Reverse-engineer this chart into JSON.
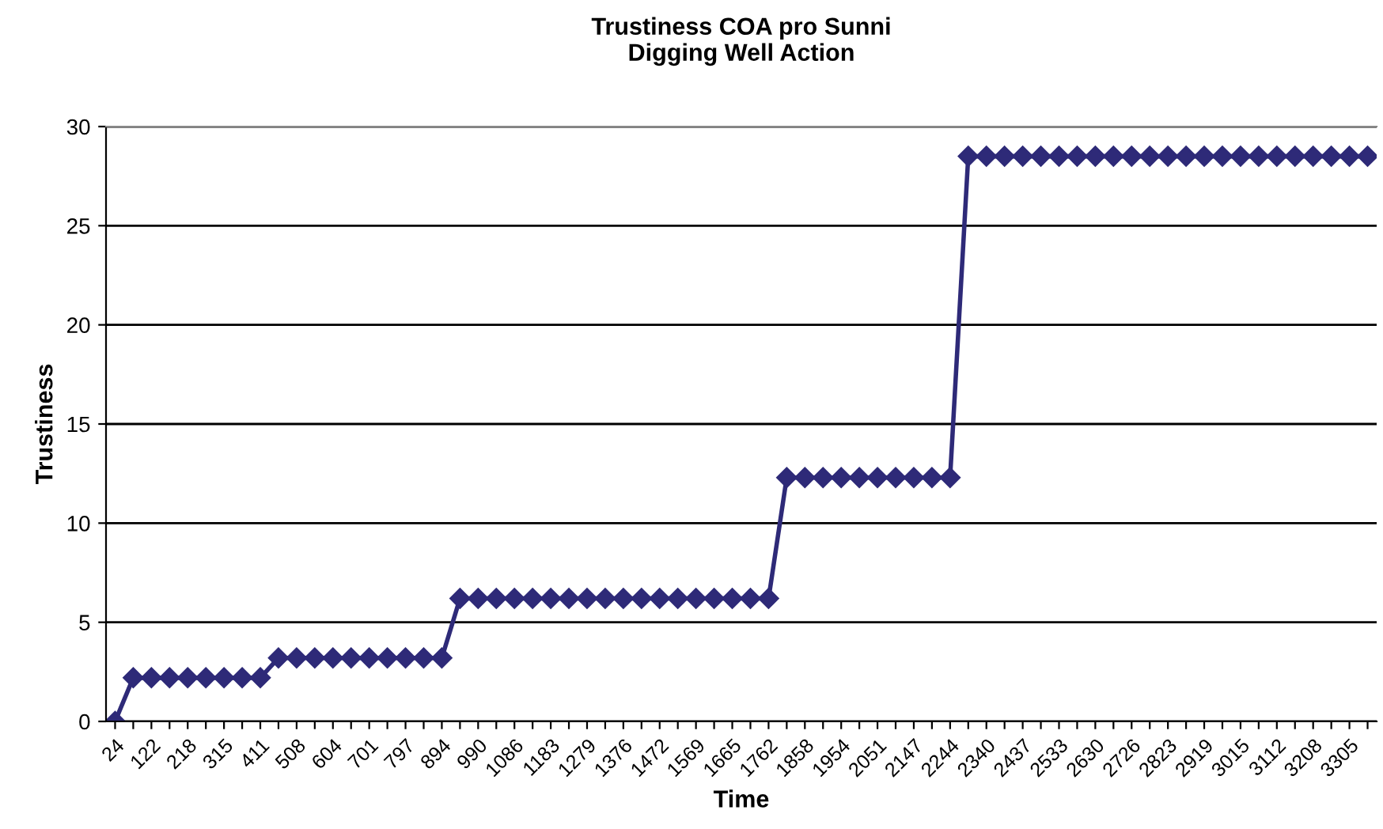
{
  "chart_data": {
    "type": "line",
    "title": "Trustiness COA pro Sunni\nDigging Well Action",
    "xlabel": "Time",
    "ylabel": "Trustiness",
    "categories": [
      "24",
      null,
      "122",
      null,
      "218",
      null,
      "315",
      null,
      "411",
      null,
      "508",
      null,
      "604",
      null,
      "701",
      null,
      "797",
      null,
      "894",
      null,
      "990",
      null,
      "1086",
      null,
      "1183",
      null,
      "1279",
      null,
      "1376",
      null,
      "1472",
      null,
      "1569",
      null,
      "1665",
      null,
      "1762",
      null,
      "1858",
      null,
      "1954",
      null,
      "2051",
      null,
      "2147",
      null,
      "2244",
      null,
      "2340",
      null,
      "2437",
      null,
      "2533",
      null,
      "2630",
      null,
      "2726",
      null,
      "2823",
      null,
      "2919",
      null,
      "3015",
      null,
      "3112",
      null,
      "3208",
      null,
      "3305",
      null
    ],
    "series": [
      {
        "color": "#2e2a78",
        "values": [
          0,
          2.2,
          2.2,
          2.2,
          2.2,
          2.2,
          2.2,
          2.2,
          2.2,
          3.2,
          3.2,
          3.2,
          3.2,
          3.2,
          3.2,
          3.2,
          3.2,
          3.2,
          3.2,
          6.2,
          6.2,
          6.2,
          6.2,
          6.2,
          6.2,
          6.2,
          6.2,
          6.2,
          6.2,
          6.2,
          6.2,
          6.2,
          6.2,
          6.2,
          6.2,
          6.2,
          6.2,
          12.3,
          12.3,
          12.3,
          12.3,
          12.3,
          12.3,
          12.3,
          12.3,
          12.3,
          12.3,
          28.5,
          28.5,
          28.5,
          28.5,
          28.5,
          28.5,
          28.5,
          28.5,
          28.5,
          28.5,
          28.5,
          28.5,
          28.5,
          28.5,
          28.5,
          28.5,
          28.5,
          28.5,
          28.5,
          28.5,
          28.5,
          28.5,
          28.5
        ]
      }
    ],
    "ylim": [
      0,
      30
    ],
    "yticks": [
      0,
      5,
      10,
      15,
      20,
      25,
      30
    ],
    "grid": "y",
    "marker": "diamond",
    "line_style": "solid",
    "legend": false
  }
}
